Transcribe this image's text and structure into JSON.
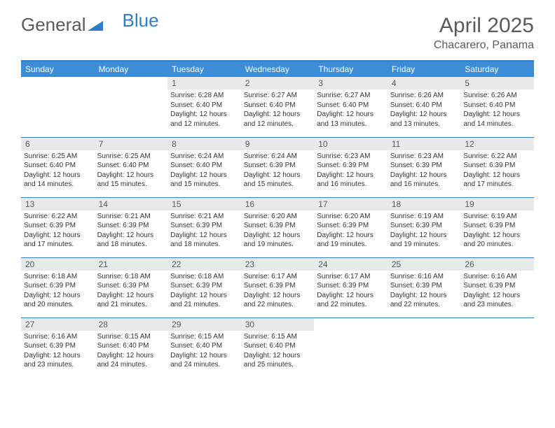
{
  "logo": {
    "text_gray": "General",
    "text_blue": "Blue"
  },
  "header": {
    "month_title": "April 2025",
    "location": "Chacarero, Panama"
  },
  "colors": {
    "header_bg": "#3c8dd6",
    "header_text": "#ffffff",
    "border": "#2f7dc4",
    "daynum_bg": "#e8e9ea",
    "text_gray": "#5a5a5a"
  },
  "weekdays": [
    "Sunday",
    "Monday",
    "Tuesday",
    "Wednesday",
    "Thursday",
    "Friday",
    "Saturday"
  ],
  "weeks": [
    [
      null,
      null,
      {
        "num": "1",
        "sunrise": "6:28 AM",
        "sunset": "6:40 PM",
        "daylight": "12 hours and 12 minutes."
      },
      {
        "num": "2",
        "sunrise": "6:27 AM",
        "sunset": "6:40 PM",
        "daylight": "12 hours and 12 minutes."
      },
      {
        "num": "3",
        "sunrise": "6:27 AM",
        "sunset": "6:40 PM",
        "daylight": "12 hours and 13 minutes."
      },
      {
        "num": "4",
        "sunrise": "6:26 AM",
        "sunset": "6:40 PM",
        "daylight": "12 hours and 13 minutes."
      },
      {
        "num": "5",
        "sunrise": "6:26 AM",
        "sunset": "6:40 PM",
        "daylight": "12 hours and 14 minutes."
      }
    ],
    [
      {
        "num": "6",
        "sunrise": "6:25 AM",
        "sunset": "6:40 PM",
        "daylight": "12 hours and 14 minutes."
      },
      {
        "num": "7",
        "sunrise": "6:25 AM",
        "sunset": "6:40 PM",
        "daylight": "12 hours and 15 minutes."
      },
      {
        "num": "8",
        "sunrise": "6:24 AM",
        "sunset": "6:40 PM",
        "daylight": "12 hours and 15 minutes."
      },
      {
        "num": "9",
        "sunrise": "6:24 AM",
        "sunset": "6:39 PM",
        "daylight": "12 hours and 15 minutes."
      },
      {
        "num": "10",
        "sunrise": "6:23 AM",
        "sunset": "6:39 PM",
        "daylight": "12 hours and 16 minutes."
      },
      {
        "num": "11",
        "sunrise": "6:23 AM",
        "sunset": "6:39 PM",
        "daylight": "12 hours and 16 minutes."
      },
      {
        "num": "12",
        "sunrise": "6:22 AM",
        "sunset": "6:39 PM",
        "daylight": "12 hours and 17 minutes."
      }
    ],
    [
      {
        "num": "13",
        "sunrise": "6:22 AM",
        "sunset": "6:39 PM",
        "daylight": "12 hours and 17 minutes."
      },
      {
        "num": "14",
        "sunrise": "6:21 AM",
        "sunset": "6:39 PM",
        "daylight": "12 hours and 18 minutes."
      },
      {
        "num": "15",
        "sunrise": "6:21 AM",
        "sunset": "6:39 PM",
        "daylight": "12 hours and 18 minutes."
      },
      {
        "num": "16",
        "sunrise": "6:20 AM",
        "sunset": "6:39 PM",
        "daylight": "12 hours and 19 minutes."
      },
      {
        "num": "17",
        "sunrise": "6:20 AM",
        "sunset": "6:39 PM",
        "daylight": "12 hours and 19 minutes."
      },
      {
        "num": "18",
        "sunrise": "6:19 AM",
        "sunset": "6:39 PM",
        "daylight": "12 hours and 19 minutes."
      },
      {
        "num": "19",
        "sunrise": "6:19 AM",
        "sunset": "6:39 PM",
        "daylight": "12 hours and 20 minutes."
      }
    ],
    [
      {
        "num": "20",
        "sunrise": "6:18 AM",
        "sunset": "6:39 PM",
        "daylight": "12 hours and 20 minutes."
      },
      {
        "num": "21",
        "sunrise": "6:18 AM",
        "sunset": "6:39 PM",
        "daylight": "12 hours and 21 minutes."
      },
      {
        "num": "22",
        "sunrise": "6:18 AM",
        "sunset": "6:39 PM",
        "daylight": "12 hours and 21 minutes."
      },
      {
        "num": "23",
        "sunrise": "6:17 AM",
        "sunset": "6:39 PM",
        "daylight": "12 hours and 22 minutes."
      },
      {
        "num": "24",
        "sunrise": "6:17 AM",
        "sunset": "6:39 PM",
        "daylight": "12 hours and 22 minutes."
      },
      {
        "num": "25",
        "sunrise": "6:16 AM",
        "sunset": "6:39 PM",
        "daylight": "12 hours and 22 minutes."
      },
      {
        "num": "26",
        "sunrise": "6:16 AM",
        "sunset": "6:39 PM",
        "daylight": "12 hours and 23 minutes."
      }
    ],
    [
      {
        "num": "27",
        "sunrise": "6:16 AM",
        "sunset": "6:39 PM",
        "daylight": "12 hours and 23 minutes."
      },
      {
        "num": "28",
        "sunrise": "6:15 AM",
        "sunset": "6:40 PM",
        "daylight": "12 hours and 24 minutes."
      },
      {
        "num": "29",
        "sunrise": "6:15 AM",
        "sunset": "6:40 PM",
        "daylight": "12 hours and 24 minutes."
      },
      {
        "num": "30",
        "sunrise": "6:15 AM",
        "sunset": "6:40 PM",
        "daylight": "12 hours and 25 minutes."
      },
      null,
      null,
      null
    ]
  ],
  "labels": {
    "sunrise": "Sunrise:",
    "sunset": "Sunset:",
    "daylight": "Daylight:"
  }
}
